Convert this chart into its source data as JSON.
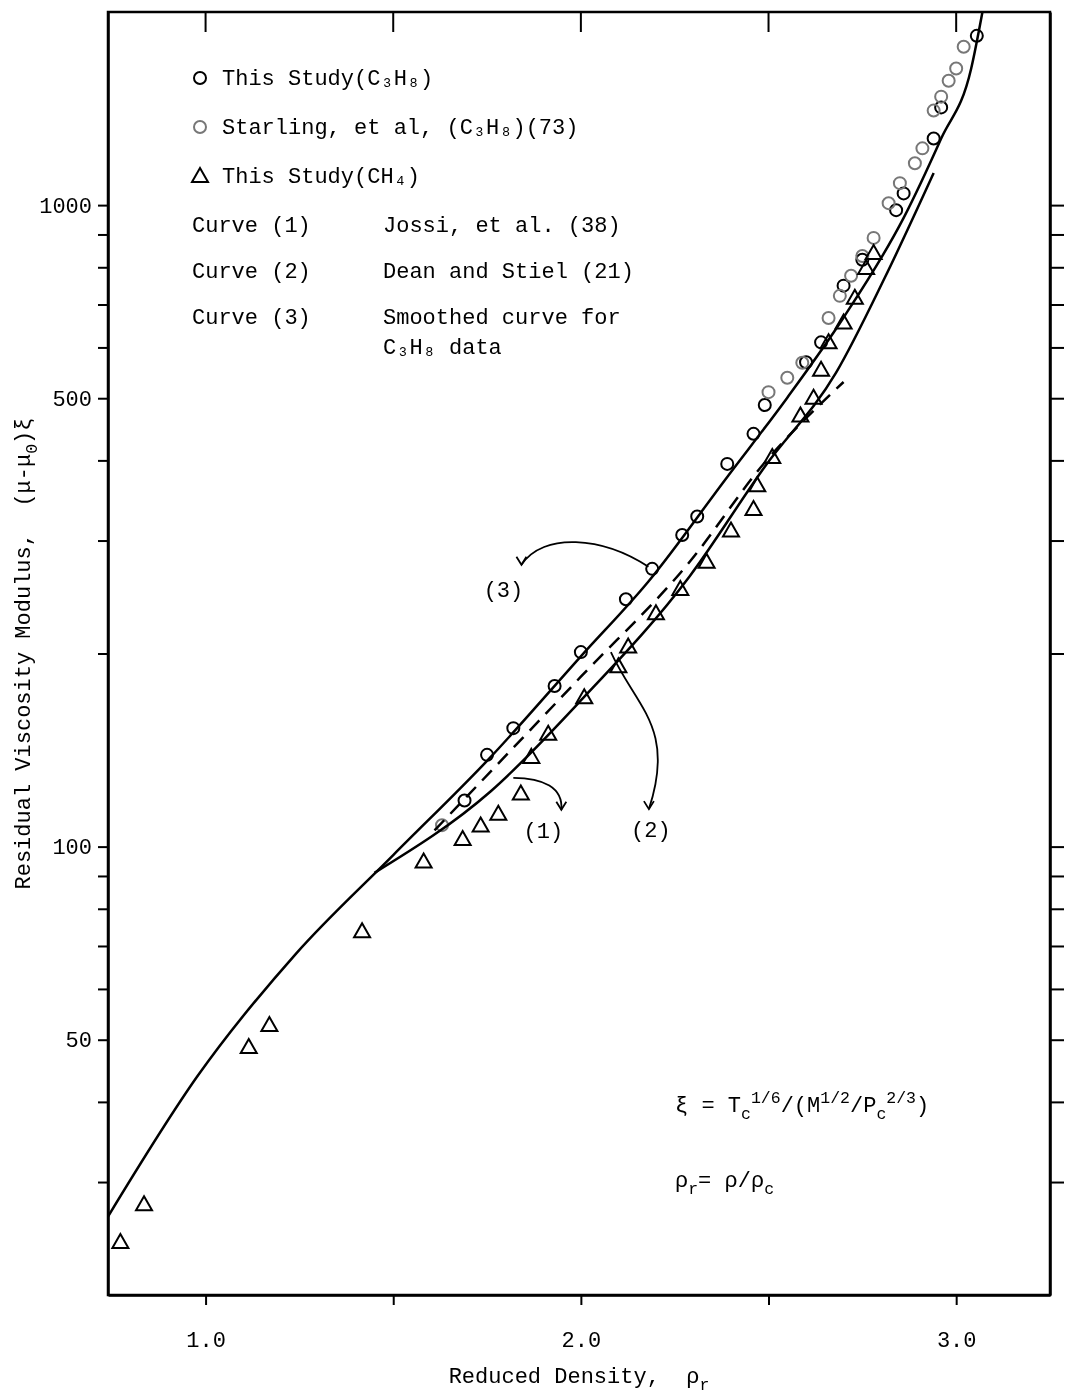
{
  "chart_data": {
    "type": "scatter",
    "xlabel": "Reduced Density,  ρ$_{r}$",
    "ylabel": "Residual Viscosity Modulus,  (μ-μ$_{0}$)ξ",
    "xlim": [
      0.74,
      3.25
    ],
    "ylim": [
      20,
      2000
    ],
    "log": "y",
    "grid": false,
    "legend": "top left",
    "xticks": [
      {
        "value": 1,
        "label": "1.0"
      },
      {
        "value": 1.5,
        "label": null
      },
      {
        "value": 2,
        "label": "2.0"
      },
      {
        "value": 2.5,
        "label": null
      },
      {
        "value": 3,
        "label": "3.0"
      }
    ],
    "yticks": [
      {
        "value": 30,
        "label": null
      },
      {
        "value": 40,
        "label": null
      },
      50,
      {
        "value": 60,
        "label": null
      },
      {
        "value": 70,
        "label": null
      },
      {
        "value": 80,
        "label": null
      },
      {
        "value": 90,
        "label": null
      },
      100,
      {
        "value": 200,
        "label": null
      },
      {
        "value": 300,
        "label": null
      },
      {
        "value": 400,
        "label": null
      },
      500,
      {
        "value": 600,
        "label": null
      },
      {
        "value": 700,
        "label": null
      },
      {
        "value": 800,
        "label": null
      },
      {
        "value": 900,
        "label": null
      },
      1000
    ],
    "series": [
      {
        "name": "This Study(C₃H₈)",
        "marker": "circle",
        "color": "#000000",
        "x": [
          1.69,
          1.75,
          1.82,
          1.93,
          2.0,
          2.12,
          2.19,
          2.27,
          2.31,
          2.39,
          2.46,
          2.49,
          2.6,
          2.64,
          2.7,
          2.75,
          2.84,
          2.86,
          2.94,
          2.96,
          3.055
        ],
        "values": [
          118,
          139,
          153,
          178,
          201,
          243,
          271,
          306,
          327,
          395,
          440,
          488,
          569,
          611,
          749,
          822,
          982,
          1043,
          1270,
          1420,
          1836
        ]
      },
      {
        "name": "Starling, et al, (C₃H₈)(73)",
        "marker": "circle",
        "color": "#777777",
        "x": [
          1.63,
          2.5,
          2.55,
          2.59,
          2.66,
          2.69,
          2.72,
          2.75,
          2.78,
          2.82,
          2.85,
          2.89,
          2.91,
          2.94,
          2.96,
          2.98,
          3.0,
          3.02
        ],
        "values": [
          108,
          511,
          538,
          568,
          667,
          722,
          776,
          833,
          889,
          1007,
          1082,
          1162,
          1226,
          1404,
          1476,
          1563,
          1633,
          1765
        ]
      },
      {
        "name": "This Study(CH₄)",
        "marker": "triangle",
        "color": "#000000",
        "x": [
          0.773,
          0.836,
          1.115,
          1.17,
          1.417,
          1.581,
          1.685,
          1.733,
          1.78,
          1.84,
          1.868,
          1.913,
          2.009,
          2.1,
          2.126,
          2.2,
          2.265,
          2.335,
          2.4,
          2.46,
          2.47,
          2.51,
          2.585,
          2.62,
          2.64,
          2.66,
          2.7,
          2.73,
          2.76,
          2.78
        ],
        "values": [
          24.2,
          27.7,
          48.7,
          52.7,
          73.8,
          94.8,
          102.8,
          107.9,
          112.5,
          121,
          138,
          150,
          171,
          191,
          205,
          231,
          252,
          278,
          311,
          336,
          366,
          405,
          470,
          501,
          554,
          611,
          656,
          717,
          798,
          842
        ]
      },
      {
        "name": "Curve (1)  Jossi, et al. (38)",
        "type": "line",
        "marker": "none",
        "line_style": "solid",
        "color": "#000000",
        "x": [
          1.45,
          1.76,
          2.0,
          2.29,
          2.49,
          2.68,
          2.81,
          2.94
        ],
        "values": [
          91,
          122,
          169,
          264,
          391,
          548,
          771,
          1122
        ]
      },
      {
        "name": "Curve (2)  Dean and Stiel (21)",
        "type": "line",
        "marker": "none",
        "line_style": "dashed",
        "color": "#000000",
        "x": [
          1.61,
          2.0,
          2.29,
          2.49,
          2.7
        ],
        "values": [
          106,
          184,
          278,
          397,
          530
        ]
      },
      {
        "name": "Curve (3)  Smoothed curve for C₃H₈ data",
        "type": "line",
        "marker": "none",
        "line_style": "solid",
        "color": "#000000",
        "x": [
          0.74,
          0.98,
          1.24,
          1.5,
          1.76,
          2.0,
          2.18,
          2.39,
          2.55,
          2.7,
          2.86,
          2.96,
          3.04,
          3.07
        ],
        "values": [
          26.5,
          44,
          68,
          97,
          138,
          198,
          259,
          377,
          501,
          668,
          955,
          1270,
          1633,
          2000
        ]
      }
    ],
    "annotations": [
      {
        "text": "(1)",
        "x": 1.82,
        "y": 128
      },
      {
        "text": "(2)",
        "x": 2.08,
        "y": 201
      },
      {
        "text": "(3)",
        "x": 2.18,
        "y": 273
      },
      "ξ = T$_{c}$$^{1/6}$/(M$^{1/2}$/P$_{c}$$^{2/3}$)",
      "ρ$_{r}$= ρ/ρ$_{c}$"
    ]
  }
}
